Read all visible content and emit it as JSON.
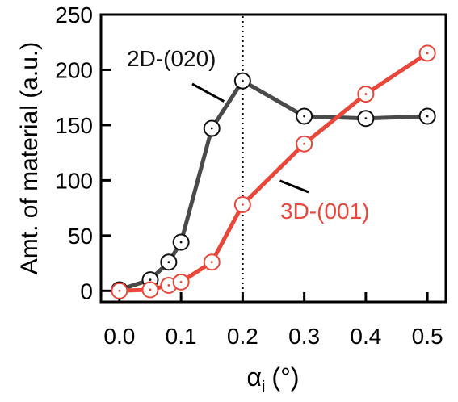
{
  "chart_data": {
    "type": "line",
    "xlabel": "αi (°)",
    "xlabel_main": "α",
    "xlabel_sub": "i",
    "xlabel_unit": "(°)",
    "ylabel": "Amt. of material (a.u.)",
    "xlim": [
      -0.03,
      0.53
    ],
    "ylim": [
      -10,
      250
    ],
    "x_ticks": [
      0.0,
      0.1,
      0.2,
      0.3,
      0.4,
      0.5
    ],
    "x_tick_labels": [
      "0.0",
      "0.1",
      "0.2",
      "0.3",
      "0.4",
      "0.5"
    ],
    "y_ticks": [
      0,
      50,
      100,
      150,
      200,
      250
    ],
    "y_tick_labels": [
      "0",
      "50",
      "100",
      "150",
      "200",
      "250"
    ],
    "grid": false,
    "vline": {
      "x": 0.2,
      "style": "dotted"
    },
    "series": [
      {
        "name": "2D-(020)",
        "color": "#4a4a4a",
        "marker_color": "#111111",
        "x": [
          0.0,
          0.05,
          0.08,
          0.1,
          0.15,
          0.2,
          0.3,
          0.4,
          0.5
        ],
        "values": [
          1,
          10,
          26,
          44,
          147,
          190,
          158,
          156,
          158
        ]
      },
      {
        "name": "3D-(001)",
        "color": "#e8473a",
        "marker_color": "#e8473a",
        "x": [
          0.0,
          0.05,
          0.08,
          0.1,
          0.15,
          0.2,
          0.3,
          0.4,
          0.5
        ],
        "values": [
          0,
          1,
          5,
          8,
          26,
          78,
          133,
          178,
          215
        ]
      }
    ],
    "annotations": [
      {
        "text": "2D-(020)",
        "series": 0,
        "label_color": "#111111"
      },
      {
        "text": "3D-(001)",
        "series": 1,
        "label_color": "#e8473a"
      }
    ]
  }
}
